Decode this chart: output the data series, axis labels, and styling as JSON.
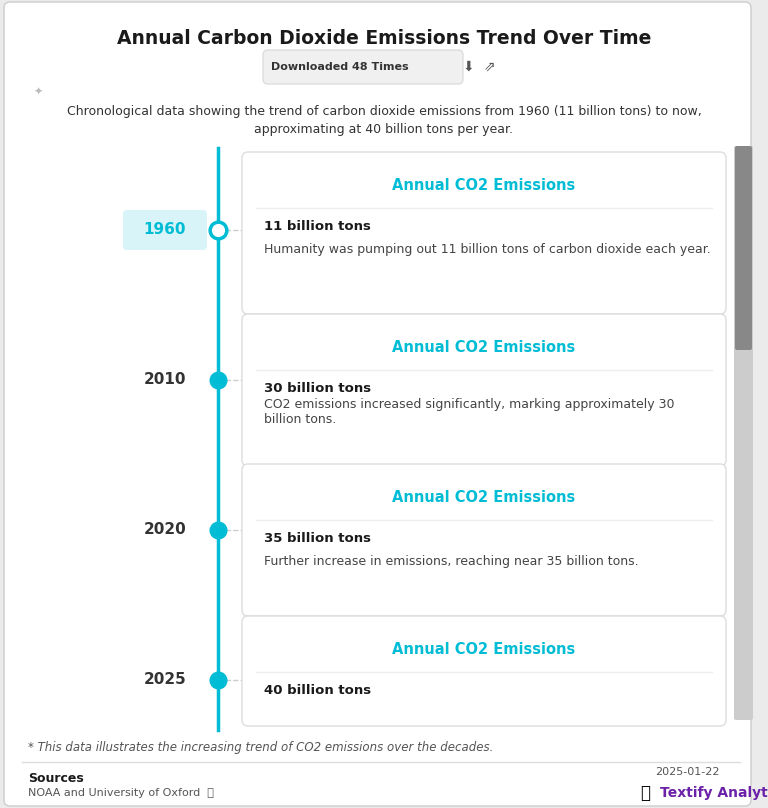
{
  "title": "Annual Carbon Dioxide Emissions Trend Over Time",
  "subtitle": "Downloaded 48 Times",
  "description_line1": "Chronological data showing the trend of carbon dioxide emissions from 1960 (11 billion tons) to now,",
  "description_line2": "approximating at 40 billion tons per year.",
  "footnote": "* This data illustrates the increasing trend of CO2 emissions over the decades.",
  "sources_label": "Sources",
  "sources_text": "NOAA and University of Oxford",
  "date": "2025-01-22",
  "brand": "Textify Analytics",
  "timeline_color": "#00BCD4",
  "card_title": "Annual CO2 Emissions",
  "card_title_color": "#00BCD4",
  "card_border_color": "#DDDDDD",
  "card_bg": "#FFFFFF",
  "year_label_color_1960": "#00BCD4",
  "year_label_bg_1960": "#E0F7FA",
  "events": [
    {
      "year": "1960",
      "value": "11 billion tons",
      "description": "Humanity was pumping out 11 billion tons of carbon dioxide each year.",
      "filled": false
    },
    {
      "year": "2010",
      "value": "30 billion tons",
      "description": "CO2 emissions increased significantly, marking approximately 30\nbillion tons.",
      "filled": true
    },
    {
      "year": "2020",
      "value": "35 billion tons",
      "description": "Further increase in emissions, reaching near 35 billion tons.",
      "filled": true
    },
    {
      "year": "2025",
      "value": "40 billion tons",
      "description": "",
      "filled": true
    }
  ],
  "bg_color": "#FFFFFF",
  "outer_bg": "#EBEBEB"
}
